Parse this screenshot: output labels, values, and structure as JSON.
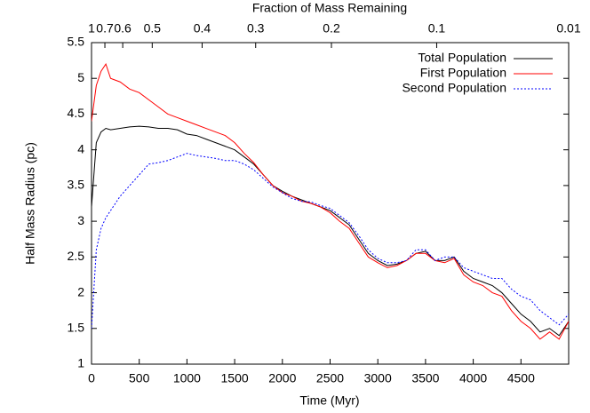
{
  "chart_data": {
    "type": "line",
    "title": "Fraction of Mass Remaining",
    "x_label": "Time (Myr)",
    "y_label": "Half Mass Radius (pc)",
    "x": [
      0,
      50,
      100,
      150,
      200,
      300,
      400,
      500,
      600,
      700,
      800,
      900,
      1000,
      1100,
      1200,
      1300,
      1400,
      1500,
      1600,
      1700,
      1800,
      1900,
      2000,
      2100,
      2200,
      2300,
      2400,
      2500,
      2600,
      2700,
      2800,
      2900,
      3000,
      3100,
      3200,
      3300,
      3400,
      3500,
      3600,
      3700,
      3800,
      3900,
      4000,
      4100,
      4200,
      4300,
      4400,
      4500,
      4600,
      4700,
      4800,
      4900,
      5000
    ],
    "series": [
      {
        "name": "Total Population",
        "color": "#000000",
        "dash": "solid",
        "values": [
          3.2,
          4.1,
          4.25,
          4.3,
          4.28,
          4.3,
          4.32,
          4.33,
          4.32,
          4.3,
          4.3,
          4.28,
          4.22,
          4.2,
          4.15,
          4.1,
          4.05,
          4.0,
          3.9,
          3.8,
          3.65,
          3.5,
          3.42,
          3.35,
          3.3,
          3.25,
          3.2,
          3.15,
          3.05,
          2.95,
          2.75,
          2.55,
          2.45,
          2.38,
          2.4,
          2.45,
          2.55,
          2.58,
          2.45,
          2.45,
          2.5,
          2.3,
          2.2,
          2.15,
          2.1,
          2.0,
          1.85,
          1.7,
          1.6,
          1.45,
          1.5,
          1.4,
          1.6
        ]
      },
      {
        "name": "First Population",
        "color": "#ff0000",
        "dash": "solid",
        "values": [
          4.4,
          4.9,
          5.1,
          5.2,
          5.0,
          4.95,
          4.85,
          4.8,
          4.7,
          4.6,
          4.5,
          4.45,
          4.4,
          4.35,
          4.3,
          4.25,
          4.2,
          4.1,
          3.95,
          3.82,
          3.65,
          3.5,
          3.4,
          3.35,
          3.28,
          3.25,
          3.2,
          3.12,
          3.0,
          2.9,
          2.7,
          2.5,
          2.42,
          2.35,
          2.38,
          2.45,
          2.55,
          2.55,
          2.45,
          2.42,
          2.48,
          2.25,
          2.15,
          2.1,
          2.0,
          1.95,
          1.75,
          1.6,
          1.5,
          1.35,
          1.45,
          1.35,
          1.6
        ]
      },
      {
        "name": "Second Population",
        "color": "#0000ff",
        "dash": "dotted",
        "values": [
          1.5,
          2.6,
          2.9,
          3.05,
          3.15,
          3.35,
          3.5,
          3.65,
          3.8,
          3.82,
          3.85,
          3.9,
          3.95,
          3.92,
          3.9,
          3.88,
          3.85,
          3.85,
          3.8,
          3.72,
          3.6,
          3.48,
          3.4,
          3.32,
          3.28,
          3.27,
          3.22,
          3.18,
          3.08,
          2.98,
          2.8,
          2.6,
          2.48,
          2.42,
          2.42,
          2.45,
          2.6,
          2.6,
          2.45,
          2.5,
          2.5,
          2.35,
          2.3,
          2.25,
          2.2,
          2.2,
          2.05,
          1.95,
          1.9,
          1.75,
          1.65,
          1.55,
          1.7
        ]
      }
    ],
    "xlim": [
      0,
      5000
    ],
    "xticks": [
      0,
      500,
      1000,
      1500,
      2000,
      2500,
      3000,
      3500,
      4000,
      4500
    ],
    "x2ticks": [
      {
        "value": 0,
        "label": "1"
      },
      {
        "value": 140,
        "label": "0.7"
      },
      {
        "value": 327,
        "label": "0.6"
      },
      {
        "value": 636,
        "label": "0.5"
      },
      {
        "value": 1159,
        "label": "0.4"
      },
      {
        "value": 1720,
        "label": "0.3"
      },
      {
        "value": 2514,
        "label": "0.2"
      },
      {
        "value": 3617,
        "label": "0.1"
      },
      {
        "value": 5000,
        "label": "0.01"
      }
    ],
    "ylim": [
      1,
      5.5
    ],
    "yticks": [
      1,
      1.5,
      2,
      2.5,
      3,
      3.5,
      4,
      4.5,
      5,
      5.5
    ],
    "legend": "top-right"
  }
}
